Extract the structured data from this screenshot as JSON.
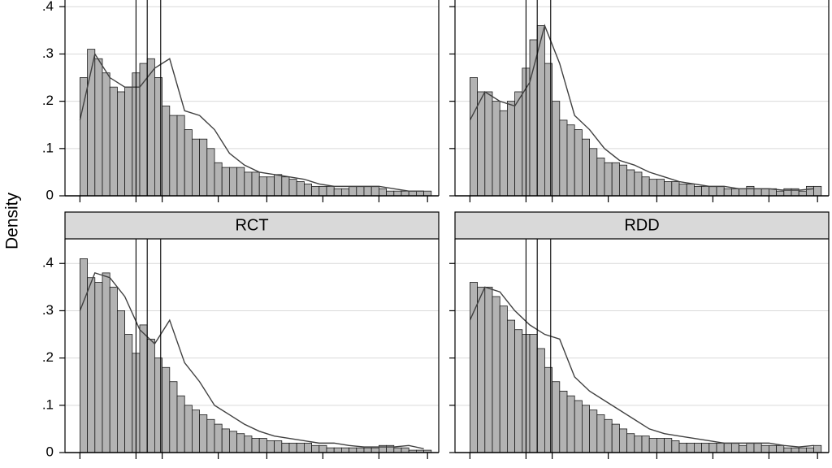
{
  "y_label": "Density",
  "chart_data": [
    {
      "type": "histogram",
      "color": "#b3b3b3",
      "grid": true,
      "y_tick_labels": true,
      "xlim": [
        0,
        100
      ],
      "xticks": [
        4,
        19,
        26,
        41,
        54,
        69,
        84,
        97
      ],
      "ylim": [
        0,
        0.452
      ],
      "yticks": [
        0,
        {
          "value": 0.1,
          "label": ".1"
        },
        {
          "value": 0.2,
          "label": ".2"
        },
        {
          "value": 0.3,
          "label": ".3"
        },
        {
          "value": 0.4,
          "label": ".4"
        }
      ],
      "vlines": [
        19,
        22,
        25.6
      ],
      "bins": [
        4,
        6,
        8,
        10,
        12,
        14,
        16,
        18,
        20,
        22,
        24,
        26,
        28,
        30,
        32,
        34,
        36,
        38,
        40,
        42,
        44,
        46,
        48,
        50,
        52,
        54,
        56,
        58,
        60,
        62,
        64,
        66,
        68,
        70,
        72,
        74,
        76,
        78,
        80,
        82,
        84,
        86,
        88,
        90,
        92,
        94,
        96,
        98
      ],
      "values": [
        0.25,
        0.31,
        0.29,
        0.26,
        0.23,
        0.22,
        0.23,
        0.26,
        0.28,
        0.29,
        0.25,
        0.19,
        0.17,
        0.17,
        0.14,
        0.12,
        0.12,
        0.1,
        0.07,
        0.06,
        0.06,
        0.06,
        0.05,
        0.05,
        0.04,
        0.04,
        0.045,
        0.04,
        0.035,
        0.03,
        0.025,
        0.02,
        0.02,
        0.02,
        0.015,
        0.015,
        0.02,
        0.02,
        0.02,
        0.02,
        0.015,
        0.01,
        0.01,
        0.01,
        0.01,
        0.01,
        0.01
      ],
      "density": {
        "color": "#404040",
        "x": [
          4,
          8,
          12,
          16,
          20,
          24,
          28,
          32,
          36,
          40,
          44,
          48,
          52,
          56,
          60,
          64,
          68,
          72,
          76,
          80,
          84,
          88,
          92,
          96
        ],
        "values": [
          0.16,
          0.3,
          0.25,
          0.23,
          0.23,
          0.27,
          0.29,
          0.18,
          0.17,
          0.14,
          0.09,
          0.065,
          0.05,
          0.045,
          0.04,
          0.035,
          0.025,
          0.02,
          0.02,
          0.02,
          0.02,
          0.015,
          0.01,
          0.01
        ]
      }
    },
    {
      "type": "histogram",
      "color": "#b3b3b3",
      "grid": true,
      "y_tick_labels": false,
      "xlim": [
        0,
        100
      ],
      "xticks": [
        4,
        19,
        26,
        41,
        54,
        69,
        84,
        97
      ],
      "ylim": [
        0,
        0.452
      ],
      "yticks": [
        0,
        0.1,
        0.2,
        0.3,
        0.4
      ],
      "vlines": [
        19,
        22,
        25.6
      ],
      "bins": [
        4,
        6,
        8,
        10,
        12,
        14,
        16,
        18,
        20,
        22,
        24,
        26,
        28,
        30,
        32,
        34,
        36,
        38,
        40,
        42,
        44,
        46,
        48,
        50,
        52,
        54,
        56,
        58,
        60,
        62,
        64,
        66,
        68,
        70,
        72,
        74,
        76,
        78,
        80,
        82,
        84,
        86,
        88,
        90,
        92,
        94,
        96,
        98
      ],
      "values": [
        0.25,
        0.22,
        0.22,
        0.2,
        0.18,
        0.2,
        0.22,
        0.27,
        0.33,
        0.36,
        0.28,
        0.2,
        0.16,
        0.15,
        0.14,
        0.12,
        0.1,
        0.08,
        0.07,
        0.07,
        0.065,
        0.055,
        0.05,
        0.04,
        0.035,
        0.035,
        0.03,
        0.03,
        0.025,
        0.025,
        0.02,
        0.02,
        0.02,
        0.02,
        0.015,
        0.015,
        0.015,
        0.02,
        0.015,
        0.015,
        0.015,
        0.01,
        0.015,
        0.015,
        0.01,
        0.02,
        0.02
      ],
      "density": {
        "color": "#404040",
        "x": [
          4,
          8,
          12,
          16,
          20,
          24,
          28,
          32,
          36,
          40,
          44,
          48,
          52,
          56,
          60,
          64,
          68,
          72,
          76,
          80,
          84,
          88,
          92,
          96
        ],
        "values": [
          0.16,
          0.22,
          0.2,
          0.19,
          0.24,
          0.36,
          0.28,
          0.17,
          0.14,
          0.1,
          0.075,
          0.065,
          0.05,
          0.04,
          0.03,
          0.025,
          0.02,
          0.02,
          0.015,
          0.015,
          0.015,
          0.012,
          0.012,
          0.015
        ]
      }
    },
    {
      "type": "histogram",
      "title": "RCT",
      "color": "#b3b3b3",
      "grid": true,
      "y_tick_labels": true,
      "xlim": [
        0,
        100
      ],
      "xticks": [
        4,
        19,
        26,
        41,
        54,
        69,
        84,
        97
      ],
      "ylim": [
        0,
        0.452
      ],
      "yticks": [
        0,
        {
          "value": 0.1,
          "label": ".1"
        },
        {
          "value": 0.2,
          "label": ".2"
        },
        {
          "value": 0.3,
          "label": ".3"
        },
        {
          "value": 0.4,
          "label": ".4"
        }
      ],
      "vlines": [
        19,
        22,
        25.6
      ],
      "bins": [
        4,
        6,
        8,
        10,
        12,
        14,
        16,
        18,
        20,
        22,
        24,
        26,
        28,
        30,
        32,
        34,
        36,
        38,
        40,
        42,
        44,
        46,
        48,
        50,
        52,
        54,
        56,
        58,
        60,
        62,
        64,
        66,
        68,
        70,
        72,
        74,
        76,
        78,
        80,
        82,
        84,
        86,
        88,
        90,
        92,
        94,
        96,
        98
      ],
      "values": [
        0.41,
        0.37,
        0.36,
        0.38,
        0.35,
        0.3,
        0.25,
        0.21,
        0.27,
        0.24,
        0.2,
        0.18,
        0.15,
        0.12,
        0.1,
        0.09,
        0.08,
        0.07,
        0.06,
        0.05,
        0.045,
        0.04,
        0.035,
        0.03,
        0.03,
        0.025,
        0.025,
        0.02,
        0.02,
        0.02,
        0.02,
        0.015,
        0.015,
        0.01,
        0.01,
        0.01,
        0.01,
        0.01,
        0.01,
        0.01,
        0.015,
        0.015,
        0.01,
        0.01,
        0.005,
        0.005,
        0.005
      ],
      "density": {
        "color": "#404040",
        "x": [
          4,
          8,
          12,
          16,
          20,
          24,
          28,
          32,
          36,
          40,
          44,
          48,
          52,
          56,
          60,
          64,
          68,
          72,
          76,
          80,
          84,
          88,
          92,
          96
        ],
        "values": [
          0.3,
          0.38,
          0.37,
          0.33,
          0.26,
          0.23,
          0.28,
          0.19,
          0.15,
          0.1,
          0.08,
          0.06,
          0.045,
          0.035,
          0.03,
          0.025,
          0.02,
          0.02,
          0.015,
          0.012,
          0.012,
          0.012,
          0.015,
          0.008
        ]
      }
    },
    {
      "type": "histogram",
      "title": "RDD",
      "color": "#b3b3b3",
      "grid": true,
      "y_tick_labels": false,
      "xlim": [
        0,
        100
      ],
      "xticks": [
        4,
        19,
        26,
        41,
        54,
        69,
        84,
        97
      ],
      "ylim": [
        0,
        0.452
      ],
      "yticks": [
        0,
        0.1,
        0.2,
        0.3,
        0.4
      ],
      "vlines": [
        19,
        22,
        25.6
      ],
      "bins": [
        4,
        6,
        8,
        10,
        12,
        14,
        16,
        18,
        20,
        22,
        24,
        26,
        28,
        30,
        32,
        34,
        36,
        38,
        40,
        42,
        44,
        46,
        48,
        50,
        52,
        54,
        56,
        58,
        60,
        62,
        64,
        66,
        68,
        70,
        72,
        74,
        76,
        78,
        80,
        82,
        84,
        86,
        88,
        90,
        92,
        94,
        96,
        98
      ],
      "values": [
        0.36,
        0.35,
        0.35,
        0.33,
        0.31,
        0.28,
        0.26,
        0.25,
        0.25,
        0.22,
        0.18,
        0.15,
        0.13,
        0.12,
        0.11,
        0.1,
        0.09,
        0.08,
        0.07,
        0.06,
        0.05,
        0.04,
        0.035,
        0.035,
        0.03,
        0.03,
        0.03,
        0.025,
        0.02,
        0.02,
        0.02,
        0.02,
        0.02,
        0.02,
        0.02,
        0.02,
        0.015,
        0.02,
        0.02,
        0.015,
        0.015,
        0.015,
        0.01,
        0.01,
        0.01,
        0.01,
        0.015
      ],
      "density": {
        "color": "#404040",
        "x": [
          4,
          8,
          12,
          16,
          20,
          24,
          28,
          32,
          36,
          40,
          44,
          48,
          52,
          56,
          60,
          64,
          68,
          72,
          76,
          80,
          84,
          88,
          92,
          96
        ],
        "values": [
          0.28,
          0.35,
          0.34,
          0.3,
          0.27,
          0.25,
          0.24,
          0.16,
          0.13,
          0.11,
          0.09,
          0.07,
          0.05,
          0.04,
          0.035,
          0.03,
          0.025,
          0.02,
          0.02,
          0.02,
          0.02,
          0.015,
          0.012,
          0.015
        ]
      }
    }
  ]
}
